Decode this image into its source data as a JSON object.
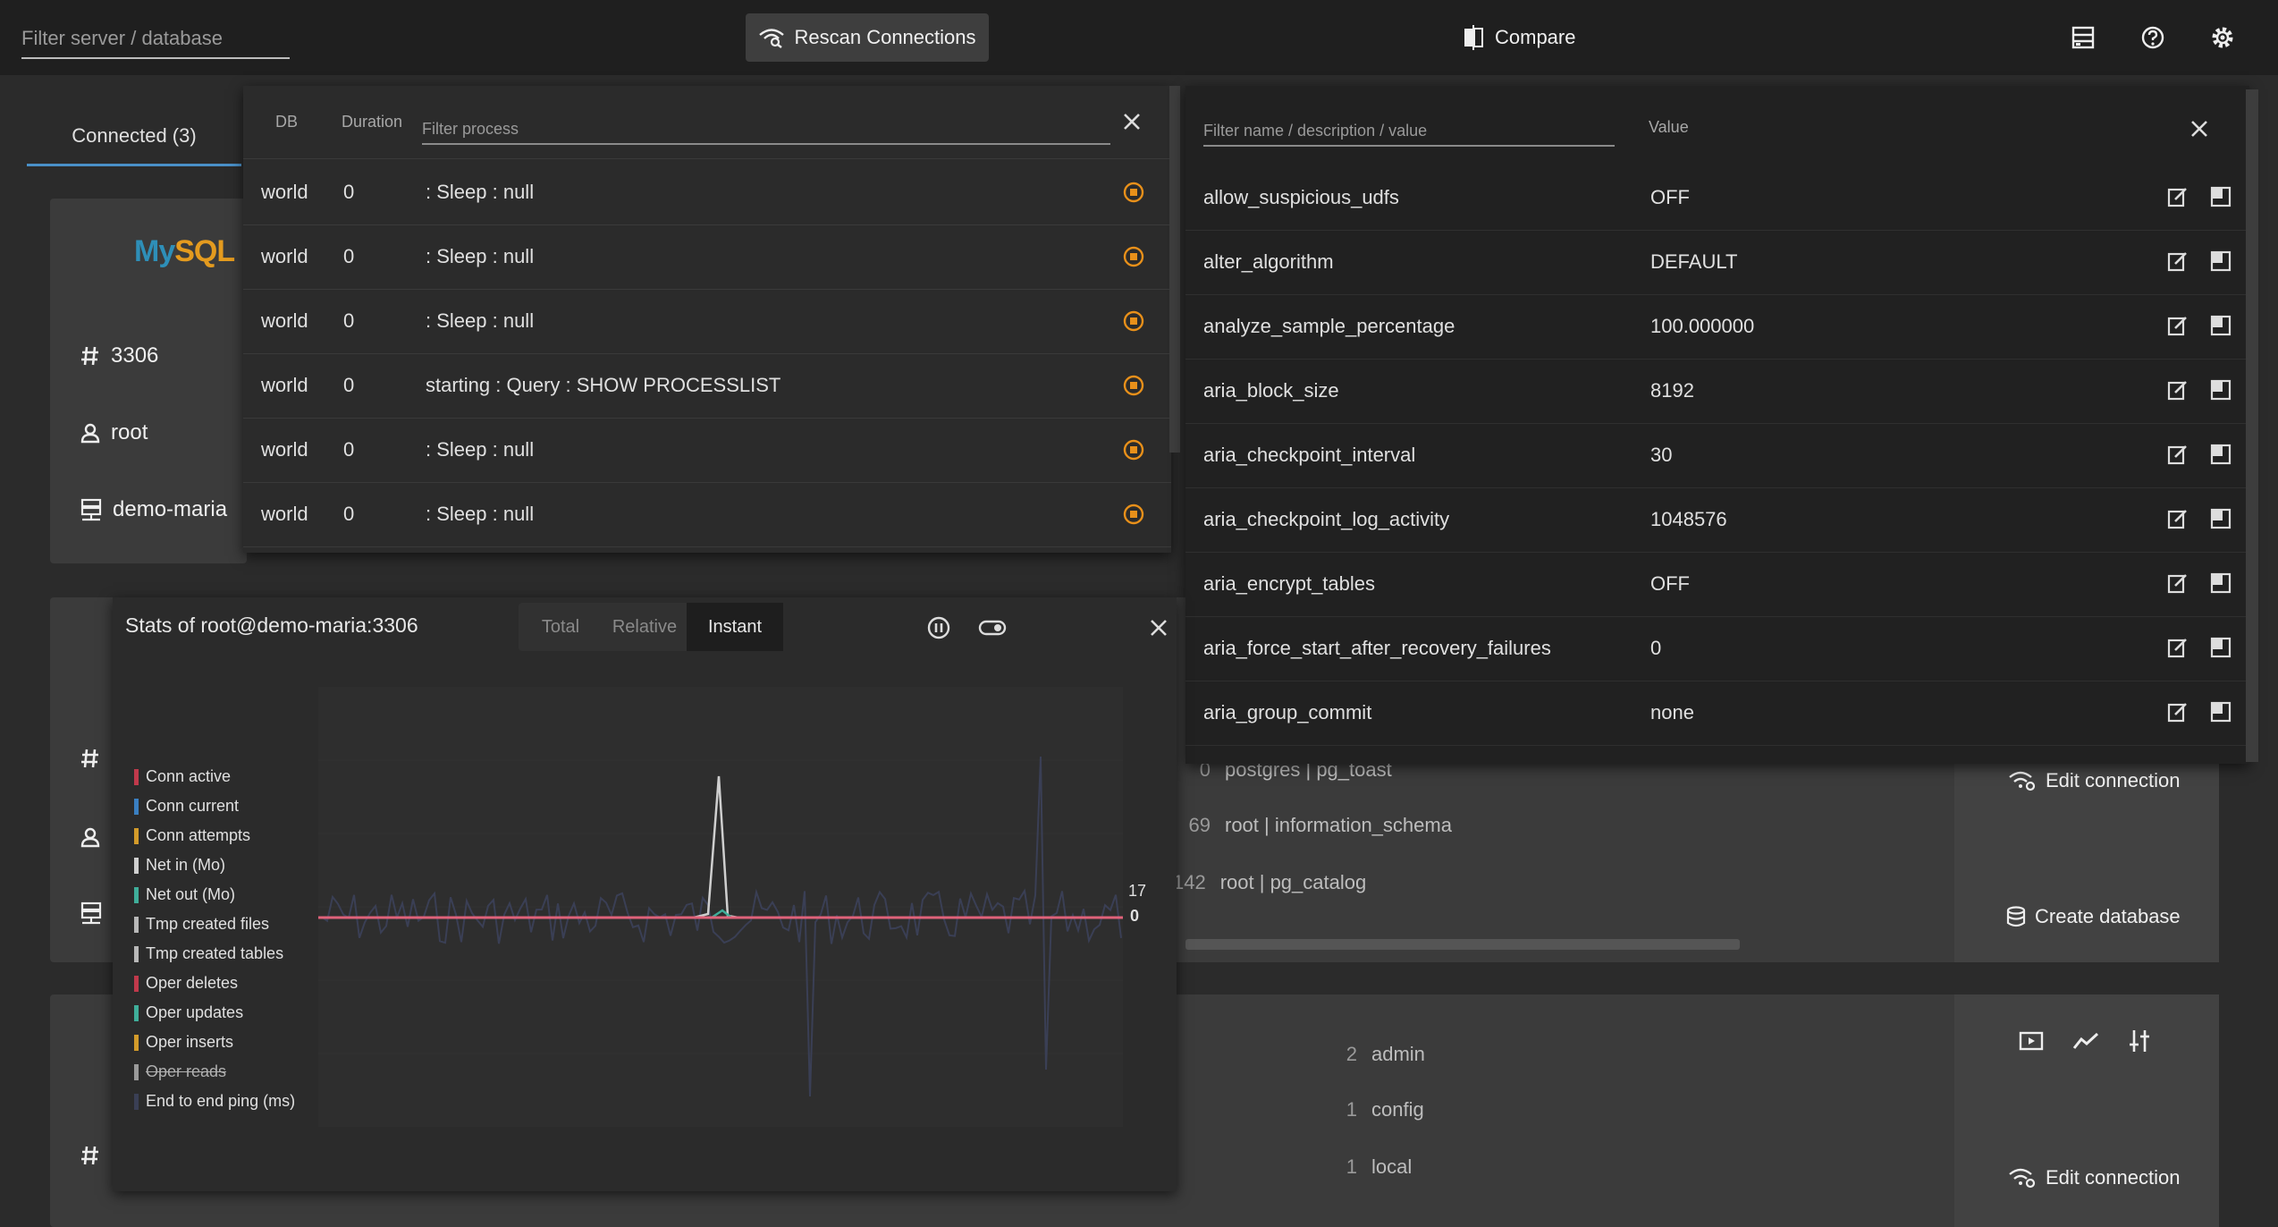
{
  "topbar": {
    "filter_placeholder": "Filter server / database",
    "rescan_label": "Rescan Connections",
    "compare_label": "Compare"
  },
  "tabs": {
    "connected": "Connected (3)"
  },
  "cards": [
    {
      "port": "3306",
      "user": "root",
      "server": "demo-maria",
      "logo": {
        "my": "My",
        "sql": "SQL"
      }
    }
  ],
  "databases_card2": [
    {
      "count": "0",
      "name": "postgres | pg_toast"
    },
    {
      "count": "69",
      "name": "root | information_schema"
    },
    {
      "count": "142",
      "name": "root | pg_catalog"
    }
  ],
  "databases_card3": [
    {
      "count": "2",
      "name": "admin"
    },
    {
      "count": "1",
      "name": "config"
    },
    {
      "count": "1",
      "name": "local"
    }
  ],
  "actions": {
    "edit_connection": "Edit connection",
    "create_database": "Create database"
  },
  "process": {
    "col_db": "DB",
    "col_duration": "Duration",
    "filter_placeholder": "Filter process",
    "rows": [
      {
        "db": "world",
        "duration": "0",
        "info": ": Sleep : null"
      },
      {
        "db": "world",
        "duration": "0",
        "info": ": Sleep : null"
      },
      {
        "db": "world",
        "duration": "0",
        "info": ": Sleep : null"
      },
      {
        "db": "world",
        "duration": "0",
        "info": "starting : Query : SHOW PROCESSLIST"
      },
      {
        "db": "world",
        "duration": "0",
        "info": ": Sleep : null"
      },
      {
        "db": "world",
        "duration": "0",
        "info": ": Sleep : null"
      }
    ]
  },
  "variables": {
    "filter_placeholder": "Filter name / description / value",
    "col_value": "Value",
    "rows": [
      {
        "name": "allow_suspicious_udfs",
        "value": "OFF"
      },
      {
        "name": "alter_algorithm",
        "value": "DEFAULT"
      },
      {
        "name": "analyze_sample_percentage",
        "value": "100.000000"
      },
      {
        "name": "aria_block_size",
        "value": "8192"
      },
      {
        "name": "aria_checkpoint_interval",
        "value": "30"
      },
      {
        "name": "aria_checkpoint_log_activity",
        "value": "1048576"
      },
      {
        "name": "aria_encrypt_tables",
        "value": "OFF"
      },
      {
        "name": "aria_force_start_after_recovery_failures",
        "value": "0"
      },
      {
        "name": "aria_group_commit",
        "value": "none"
      }
    ]
  },
  "stats": {
    "title": "Stats of root@demo-maria:3306",
    "tabs": [
      "Total",
      "Relative",
      "Instant"
    ],
    "active_tab": "Instant",
    "legend": [
      {
        "label": "Conn active",
        "color": "#c0394b",
        "struck": false
      },
      {
        "label": "Conn current",
        "color": "#3a7fc1",
        "struck": false
      },
      {
        "label": "Conn attempts",
        "color": "#d39b2a",
        "struck": false
      },
      {
        "label": "Net in (Mo)",
        "color": "#cfcfcf",
        "struck": false
      },
      {
        "label": "Net out (Mo)",
        "color": "#3fae9a",
        "struck": false
      },
      {
        "label": "Tmp created files",
        "color": "#b8b8b8",
        "struck": false
      },
      {
        "label": "Tmp created tables",
        "color": "#b8b8b8",
        "struck": false
      },
      {
        "label": "Oper deletes",
        "color": "#c0394b",
        "struck": false
      },
      {
        "label": "Oper updates",
        "color": "#3fae9a",
        "struck": false
      },
      {
        "label": "Oper inserts",
        "color": "#d39b2a",
        "struck": false
      },
      {
        "label": "Oper reads",
        "color": "#9a9a9a",
        "struck": true
      },
      {
        "label": "End to end ping (ms)",
        "color": "#3a3f55",
        "struck": false
      }
    ],
    "axis_top": "17",
    "axis_zero": "0"
  },
  "colors": {
    "accent_blue": "#4a90c8",
    "stop_orange": "#e8901a",
    "baseline_pink": "#e0627a"
  }
}
